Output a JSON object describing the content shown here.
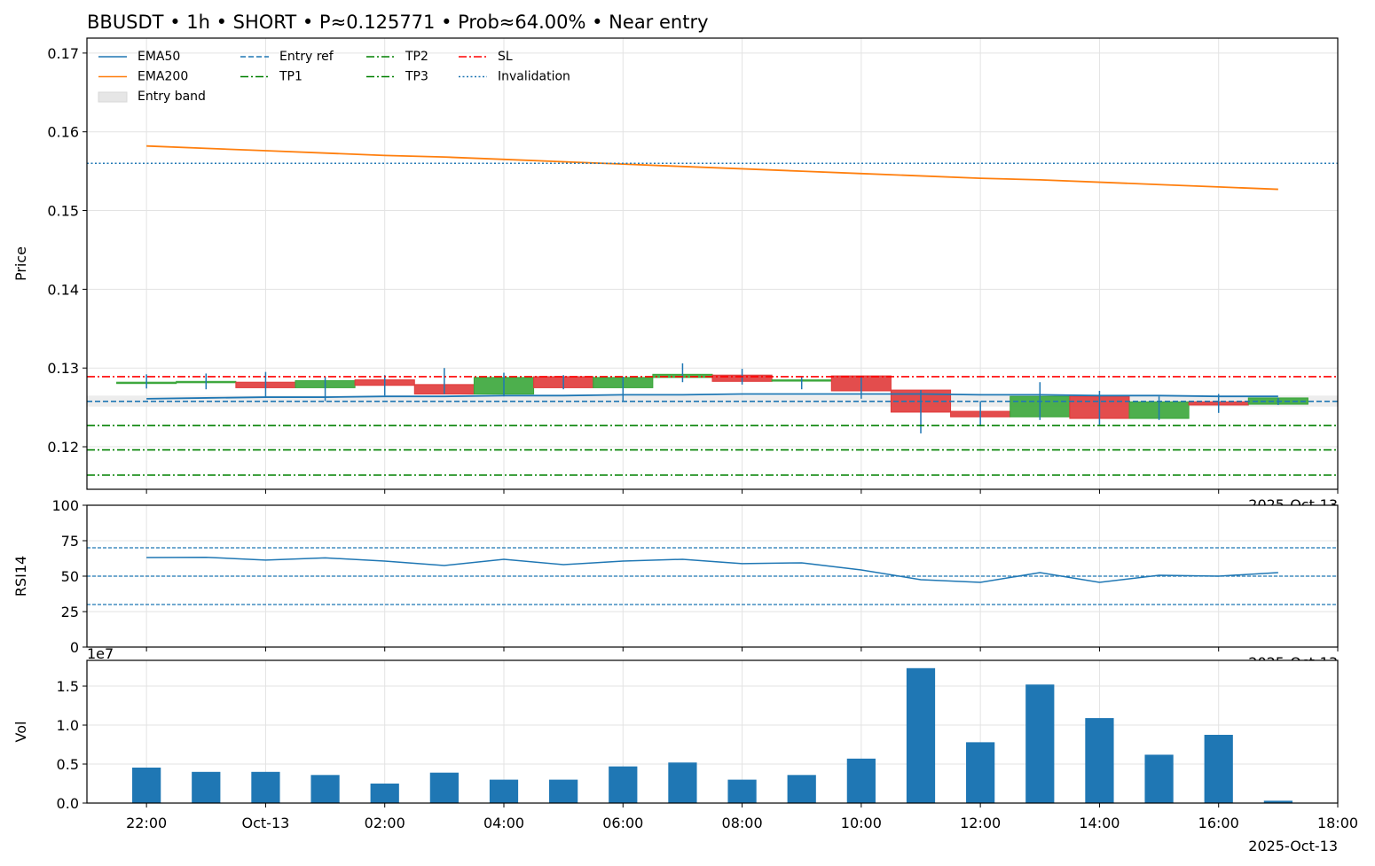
{
  "title": "BBUSDT • 1h • SHORT • P≈0.125771 • Prob≈64.00% • Near entry",
  "chart_data": [
    {
      "type": "candlestick",
      "ylabel": "Price",
      "x": [
        "2025-10-12T22:00",
        "2025-10-12T23:00",
        "2025-10-13T00:00",
        "2025-10-13T01:00",
        "2025-10-13T02:00",
        "2025-10-13T03:00",
        "2025-10-13T04:00",
        "2025-10-13T05:00",
        "2025-10-13T06:00",
        "2025-10-13T07:00",
        "2025-10-13T08:00",
        "2025-10-13T09:00",
        "2025-10-13T10:00",
        "2025-10-13T11:00",
        "2025-10-13T12:00",
        "2025-10-13T13:00",
        "2025-10-13T14:00",
        "2025-10-13T15:00",
        "2025-10-13T16:00",
        "2025-10-13T17:00"
      ],
      "open": [
        0.1281,
        0.1282,
        0.1282,
        0.1275,
        0.1285,
        0.1279,
        0.1267,
        0.1289,
        0.1275,
        0.1288,
        0.1291,
        0.1284,
        0.129,
        0.1272,
        0.1245,
        0.1238,
        0.1264,
        0.1236,
        0.1257,
        0.1254
      ],
      "high": [
        0.1292,
        0.1293,
        0.1295,
        0.1289,
        0.1291,
        0.13,
        0.1294,
        0.1291,
        0.1289,
        0.1306,
        0.1299,
        0.1289,
        0.129,
        0.1272,
        0.1258,
        0.1282,
        0.1271,
        0.1264,
        0.1267,
        0.1262
      ],
      "low": [
        0.1274,
        0.1273,
        0.1263,
        0.1258,
        0.1265,
        0.1267,
        0.1264,
        0.1273,
        0.1258,
        0.1282,
        0.1279,
        0.1273,
        0.1261,
        0.1217,
        0.1226,
        0.1234,
        0.1228,
        0.1234,
        0.1243,
        0.1253
      ],
      "close": [
        0.1282,
        0.1283,
        0.1275,
        0.1284,
        0.1278,
        0.1267,
        0.1288,
        0.1275,
        0.1288,
        0.1292,
        0.1283,
        0.1285,
        0.1271,
        0.1244,
        0.1238,
        0.1264,
        0.1236,
        0.1257,
        0.1253,
        0.1262
      ],
      "up_color": "#3aa63a",
      "down_color": "#e03a3a",
      "wick_color": "#1f77b4",
      "series": [
        {
          "name": "EMA50",
          "color": "#1f77b4",
          "values": [
            0.1261,
            0.1262,
            0.1263,
            0.1263,
            0.1264,
            0.1264,
            0.1265,
            0.1265,
            0.1266,
            0.1266,
            0.1267,
            0.1267,
            0.1267,
            0.1267,
            0.1266,
            0.1266,
            0.1265,
            0.1265,
            0.1264,
            0.1264
          ]
        },
        {
          "name": "EMA200",
          "color": "#ff7f0e",
          "values": [
            0.1582,
            0.1579,
            0.1576,
            0.1573,
            0.157,
            0.1568,
            0.1565,
            0.1562,
            0.1559,
            0.1556,
            0.1553,
            0.155,
            0.1547,
            0.1544,
            0.1541,
            0.1539,
            0.1536,
            0.1533,
            0.153,
            0.1527
          ]
        }
      ],
      "band": {
        "name": "Entry band",
        "color": "#e6e6e6",
        "range": [
          0.1251,
          0.1265
        ]
      },
      "levels": [
        {
          "name": "Entry ref",
          "value": 0.125771,
          "color": "#1f77b4",
          "style": "dashed"
        },
        {
          "name": "TP1",
          "value": 0.1227,
          "color": "#008000",
          "style": "dashdot"
        },
        {
          "name": "TP2",
          "value": 0.1196,
          "color": "#008000",
          "style": "dashdot"
        },
        {
          "name": "TP3",
          "value": 0.1164,
          "color": "#008000",
          "style": "dashdot"
        },
        {
          "name": "SL",
          "value": 0.1289,
          "color": "#ff0000",
          "style": "dashdot"
        },
        {
          "name": "Invalidation",
          "value": 0.156,
          "color": "#1f77b4",
          "style": "dotted"
        }
      ],
      "legend": "upper left",
      "xlim": [
        "2025-10-12T21:00",
        "2025-10-13T18:00"
      ],
      "xticks": [
        "2025-10-12T22:00",
        "2025-10-13T00:00",
        "2025-10-13T02:00",
        "2025-10-13T04:00",
        "2025-10-13T06:00",
        "2025-10-13T08:00",
        "2025-10-13T10:00",
        "2025-10-13T12:00",
        "2025-10-13T14:00",
        "2025-10-13T16:00",
        "2025-10-13T18:00"
      ],
      "x_offset_label": "2025-Oct-13",
      "ylim": [
        0.1146,
        0.1719
      ],
      "yticks": [
        0.12,
        0.13,
        0.14,
        0.15,
        0.16,
        0.17
      ],
      "grid": true
    },
    {
      "type": "line",
      "ylabel": "RSI14",
      "x": [
        "2025-10-12T22:00",
        "2025-10-12T23:00",
        "2025-10-13T00:00",
        "2025-10-13T01:00",
        "2025-10-13T02:00",
        "2025-10-13T03:00",
        "2025-10-13T04:00",
        "2025-10-13T05:00",
        "2025-10-13T06:00",
        "2025-10-13T07:00",
        "2025-10-13T08:00",
        "2025-10-13T09:00",
        "2025-10-13T10:00",
        "2025-10-13T11:00",
        "2025-10-13T12:00",
        "2025-10-13T13:00",
        "2025-10-13T14:00",
        "2025-10-13T15:00",
        "2025-10-13T16:00",
        "2025-10-13T17:00"
      ],
      "series": [
        {
          "color": "#1f77b4",
          "values": [
            63.1,
            63.3,
            61.3,
            62.9,
            60.6,
            57.5,
            61.9,
            58.1,
            60.6,
            61.9,
            58.8,
            59.4,
            54.4,
            47.5,
            45.6,
            52.5,
            45.6,
            50.6,
            50.0,
            52.5
          ]
        }
      ],
      "hlines": [
        70,
        50,
        30
      ],
      "hline_color": "#1f77b4",
      "xlim": [
        "2025-10-12T21:00",
        "2025-10-13T18:00"
      ],
      "xticks": [
        "2025-10-12T22:00",
        "2025-10-13T00:00",
        "2025-10-13T02:00",
        "2025-10-13T04:00",
        "2025-10-13T06:00",
        "2025-10-13T08:00",
        "2025-10-13T10:00",
        "2025-10-13T12:00",
        "2025-10-13T14:00",
        "2025-10-13T16:00",
        "2025-10-13T18:00"
      ],
      "x_offset_label": "2025-Oct-13",
      "ylim": [
        0,
        100
      ],
      "yticks": [
        0,
        25,
        50,
        75,
        100
      ],
      "grid": true
    },
    {
      "type": "bar",
      "ylabel": "Vol",
      "color": "#1f77b4",
      "x": [
        "2025-10-12T22:00",
        "2025-10-12T23:00",
        "2025-10-13T00:00",
        "2025-10-13T01:00",
        "2025-10-13T02:00",
        "2025-10-13T03:00",
        "2025-10-13T04:00",
        "2025-10-13T05:00",
        "2025-10-13T06:00",
        "2025-10-13T07:00",
        "2025-10-13T08:00",
        "2025-10-13T09:00",
        "2025-10-13T10:00",
        "2025-10-13T11:00",
        "2025-10-13T12:00",
        "2025-10-13T13:00",
        "2025-10-13T14:00",
        "2025-10-13T15:00",
        "2025-10-13T16:00",
        "2025-10-13T17:00"
      ],
      "values": [
        4550000,
        4000000,
        4000000,
        3600000,
        2500000,
        3900000,
        3000000,
        3000000,
        4700000,
        5200000,
        3000000,
        3600000,
        5700000,
        17300000,
        7800000,
        15200000,
        10900000,
        6200000,
        8750000,
        300000
      ],
      "xlim": [
        "2025-10-12T21:00",
        "2025-10-13T18:00"
      ],
      "xticks": [
        {
          "value": "2025-10-12T22:00",
          "label": "22:00"
        },
        {
          "value": "2025-10-13T00:00",
          "label": "Oct-13"
        },
        {
          "value": "2025-10-13T02:00",
          "label": "02:00"
        },
        {
          "value": "2025-10-13T04:00",
          "label": "04:00"
        },
        {
          "value": "2025-10-13T06:00",
          "label": "06:00"
        },
        {
          "value": "2025-10-13T08:00",
          "label": "08:00"
        },
        {
          "value": "2025-10-13T10:00",
          "label": "10:00"
        },
        {
          "value": "2025-10-13T12:00",
          "label": "12:00"
        },
        {
          "value": "2025-10-13T14:00",
          "label": "14:00"
        },
        {
          "value": "2025-10-13T16:00",
          "label": "16:00"
        },
        {
          "value": "2025-10-13T18:00",
          "label": "18:00"
        }
      ],
      "x_offset_label": "2025-Oct-13",
      "y_offset_label": "1e7",
      "ylim": [
        0,
        18300000
      ],
      "yticks": [
        {
          "value": 0,
          "label": "0.0"
        },
        {
          "value": 5000000,
          "label": "0.5"
        },
        {
          "value": 10000000,
          "label": "1.0"
        },
        {
          "value": 15000000,
          "label": "1.5"
        }
      ],
      "grid": true
    }
  ]
}
